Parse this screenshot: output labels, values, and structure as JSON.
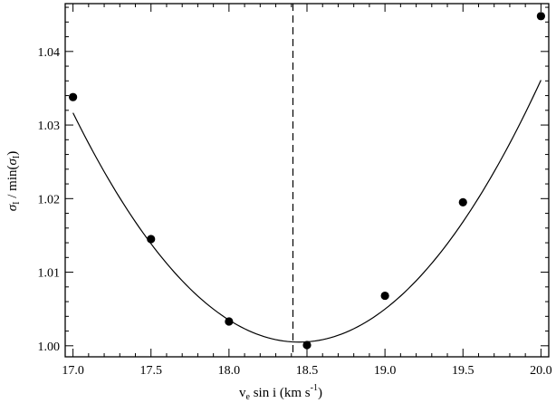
{
  "chart_data": {
    "type": "scatter",
    "title": "",
    "xlabel": {
      "v": "v",
      "sub": "e",
      "rest": " sin i (km s",
      "sup": "-1",
      "end": ")"
    },
    "ylabel": {
      "sigma": "σ",
      "sub": "I",
      "middle": " / min(",
      "sigma2": "σ",
      "sub2": "I",
      "end": ")"
    },
    "xlim": [
      16.95,
      20.05
    ],
    "ylim": [
      0.9985,
      1.0465
    ],
    "xticks": [
      17.0,
      17.5,
      18.0,
      18.5,
      19.0,
      19.5,
      20.0
    ],
    "xtick_labels": [
      "17.0",
      "17.5",
      "18.0",
      "18.5",
      "19.0",
      "19.5",
      "20.0"
    ],
    "yticks": [
      1.0,
      1.01,
      1.02,
      1.03,
      1.04
    ],
    "ytick_labels": [
      "1.00",
      "1.01",
      "1.02",
      "1.03",
      "1.04"
    ],
    "points": {
      "x": [
        17.0,
        17.5,
        18.0,
        18.5,
        19.0,
        19.5,
        20.0
      ],
      "y": [
        1.0338,
        1.0145,
        1.0033,
        1.0001,
        1.0068,
        1.0195,
        1.0448
      ]
    },
    "fit_curve": {
      "vertex_x": 18.45,
      "vertex_y": 1.0005,
      "coefficient": 0.01482,
      "x_range": [
        17.0,
        20.0
      ]
    },
    "vline": {
      "x": 18.41,
      "style": "dashed"
    },
    "colors": {
      "line": "#000000",
      "marker": "#000000",
      "background": "#ffffff"
    }
  }
}
